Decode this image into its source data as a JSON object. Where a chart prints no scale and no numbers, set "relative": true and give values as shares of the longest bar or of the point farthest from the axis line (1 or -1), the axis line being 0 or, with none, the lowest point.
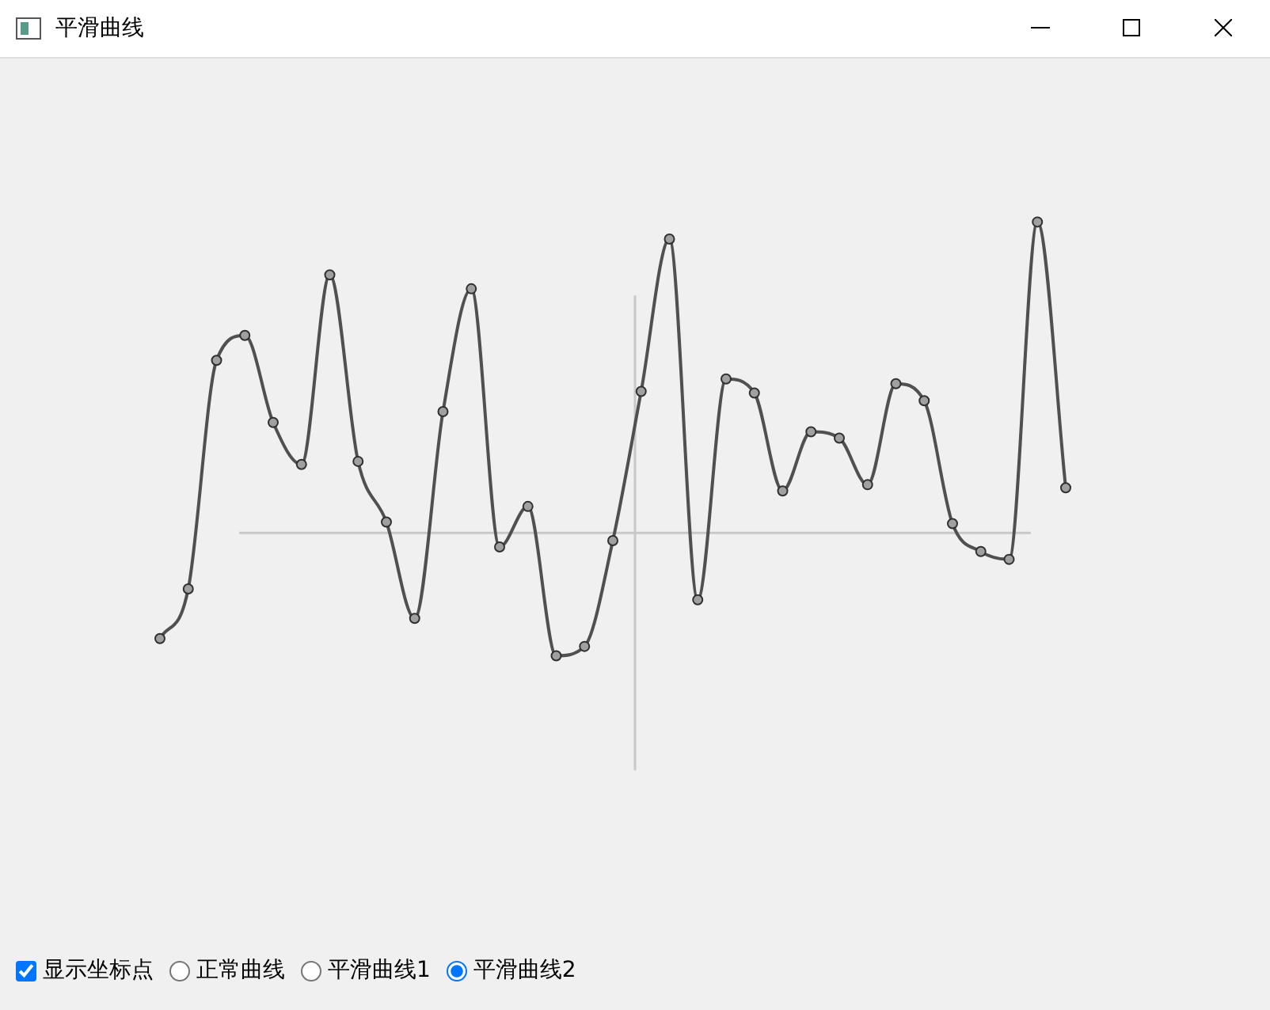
{
  "chart_data": {
    "type": "line",
    "title": "平滑曲线",
    "relative": true,
    "marker": "circle",
    "line_style": "solid",
    "legend": false,
    "categories": [
      null,
      null,
      null,
      null,
      null,
      null,
      null,
      null,
      null,
      null,
      null,
      null,
      null,
      null,
      null,
      null,
      null,
      null,
      null,
      null,
      null,
      null,
      null,
      null,
      null,
      null,
      null,
      null,
      null,
      null,
      null,
      null,
      null
    ],
    "annotations": [
      "显示坐标点",
      "正常曲线",
      "平滑曲线1",
      "平滑曲线2"
    ],
    "series": [
      {
        "color": "#505050",
        "values": [
          -0.34,
          -0.18,
          0.555,
          0.635,
          0.355,
          0.22,
          0.83,
          0.23,
          0.035,
          -0.275,
          0.39,
          0.785,
          -0.045,
          0.085,
          -0.395,
          -0.365,
          -0.025,
          0.455,
          0.945,
          -0.215,
          0.495,
          0.45,
          0.135,
          0.325,
          0.305,
          0.155,
          0.48,
          0.425,
          0.03,
          -0.06,
          -0.085,
          1,
          0.145
        ]
      }
    ]
  }
}
